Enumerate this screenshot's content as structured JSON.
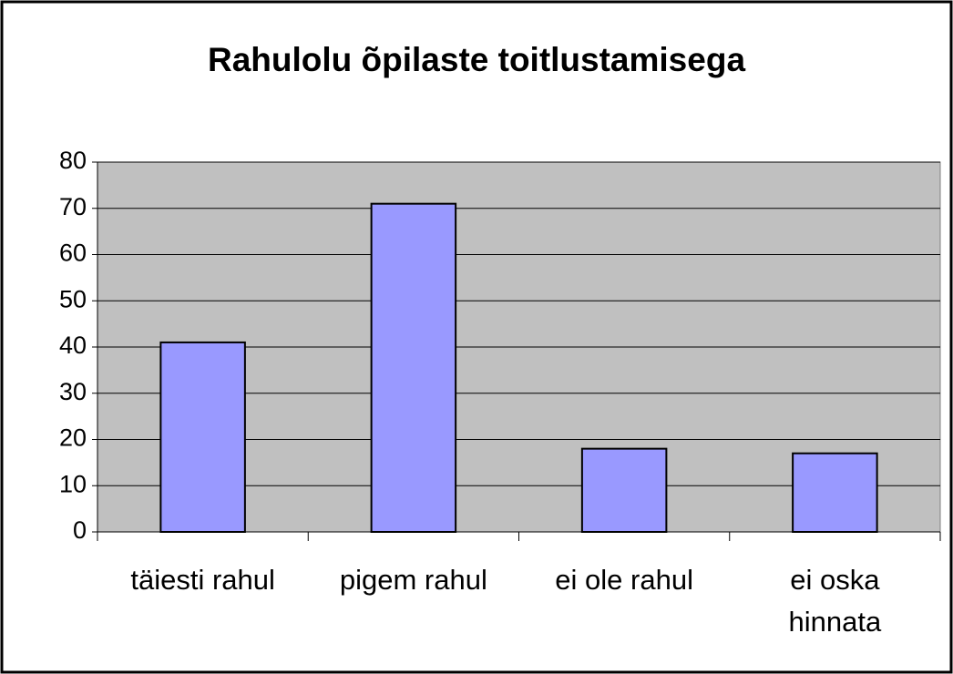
{
  "chart_data": {
    "type": "bar",
    "title": "Rahulolu õpilaste toitlustamisega",
    "categories": [
      "täiesti rahul",
      "pigem rahul",
      "ei ole rahul",
      "ei oska hinnata"
    ],
    "values": [
      41,
      71,
      18,
      17
    ],
    "color": "#9999ff",
    "ylim": [
      0,
      80
    ],
    "yticks": [
      0,
      10,
      20,
      30,
      40,
      50,
      60,
      70,
      80
    ],
    "grid": true
  }
}
